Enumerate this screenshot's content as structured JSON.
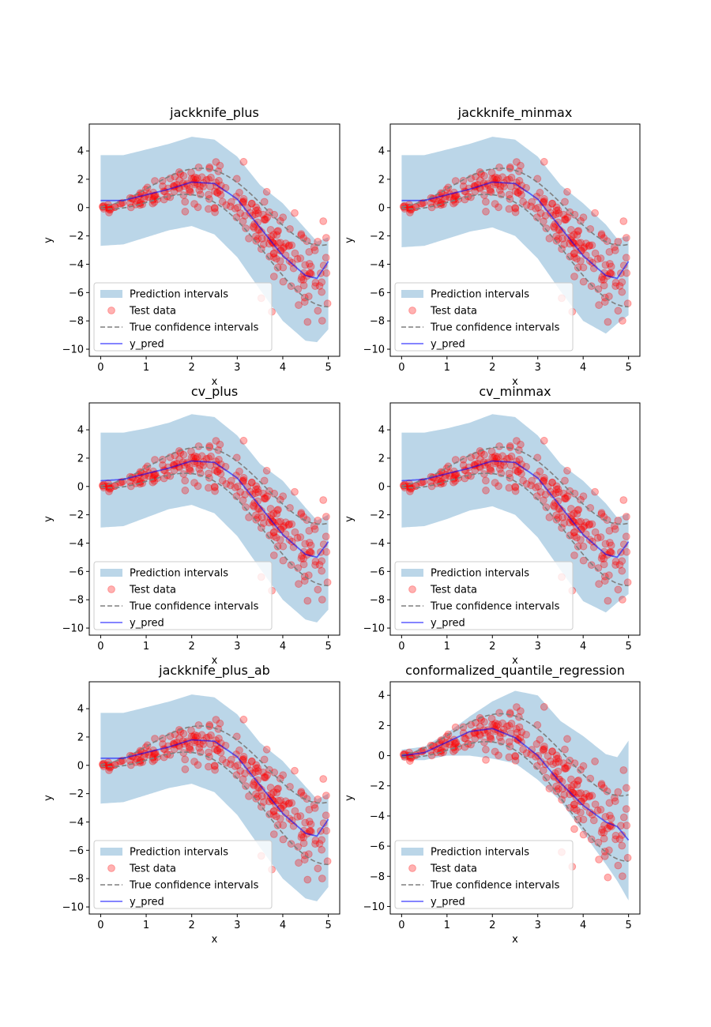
{
  "chart_data": [
    {
      "type": "scatter",
      "title": "jackknife_plus",
      "xlabel": "x",
      "ylabel": "y",
      "xlim": [
        -0.25,
        5.25
      ],
      "ylim": [
        -10.5,
        5.9
      ],
      "xticks": [
        0,
        1,
        2,
        3,
        4,
        5
      ],
      "yticks": [
        -10,
        -8,
        -6,
        -4,
        -2,
        0,
        2,
        4
      ],
      "legend_position": "lower-left",
      "legend": [
        "Prediction intervals",
        "Test data",
        "True confidence intervals",
        "y_pred"
      ],
      "interval_x": [
        0,
        0.5,
        1,
        1.5,
        2,
        2.5,
        3,
        3.5,
        4,
        4.5,
        4.75,
        5
      ],
      "interval_lower": [
        -2.7,
        -2.6,
        -2.1,
        -1.6,
        -1.3,
        -1.9,
        -3.5,
        -5.8,
        -8.0,
        -9.4,
        -9.5,
        -8.6
      ],
      "interval_upper": [
        3.7,
        3.7,
        4.1,
        4.5,
        5.0,
        4.8,
        3.6,
        1.6,
        0.3,
        -1.5,
        -2.4,
        -2.1
      ],
      "y_pred_x": [
        0,
        0.5,
        1,
        1.5,
        2,
        2.5,
        3,
        3.5,
        4,
        4.5,
        4.75,
        5
      ],
      "y_pred": [
        0.5,
        0.5,
        0.9,
        1.3,
        1.8,
        1.7,
        0.6,
        -1.4,
        -3.4,
        -4.8,
        -5.0,
        -3.8
      ]
    },
    {
      "type": "scatter",
      "title": "jackknife_minmax",
      "xlabel": "x",
      "ylabel": "y",
      "xlim": [
        -0.25,
        5.25
      ],
      "ylim": [
        -10.5,
        5.9
      ],
      "xticks": [
        0,
        1,
        2,
        3,
        4,
        5
      ],
      "yticks": [
        -10,
        -8,
        -6,
        -4,
        -2,
        0,
        2,
        4
      ],
      "legend_position": "lower-left",
      "legend": [
        "Prediction intervals",
        "Test data",
        "True confidence intervals",
        "y_pred"
      ],
      "interval_x": [
        0,
        0.5,
        1,
        1.5,
        2,
        2.5,
        3,
        3.5,
        4,
        4.5,
        4.75,
        5
      ],
      "interval_lower": [
        -2.8,
        -2.7,
        -2.2,
        -1.7,
        -1.4,
        -2.0,
        -3.6,
        -5.9,
        -8.0,
        -8.9,
        -8.2,
        -7.6
      ],
      "interval_upper": [
        3.7,
        3.7,
        4.1,
        4.5,
        5.0,
        4.8,
        3.6,
        1.6,
        0.3,
        -1.2,
        -2.2,
        -2.0
      ],
      "y_pred_x": [
        0,
        0.5,
        1,
        1.5,
        2,
        2.5,
        3,
        3.5,
        4,
        4.5,
        4.75,
        5
      ],
      "y_pred": [
        0.5,
        0.5,
        0.9,
        1.3,
        1.8,
        1.7,
        0.6,
        -1.4,
        -3.4,
        -4.8,
        -5.0,
        -3.8
      ]
    },
    {
      "type": "scatter",
      "title": "cv_plus",
      "xlabel": "x",
      "ylabel": "y",
      "xlim": [
        -0.25,
        5.25
      ],
      "ylim": [
        -10.5,
        5.9
      ],
      "xticks": [
        0,
        1,
        2,
        3,
        4,
        5
      ],
      "yticks": [
        -10,
        -8,
        -6,
        -4,
        -2,
        0,
        2,
        4
      ],
      "legend_position": "lower-left",
      "legend": [
        "Prediction intervals",
        "Test data",
        "True confidence intervals",
        "y_pred"
      ],
      "interval_x": [
        0,
        0.5,
        1,
        1.5,
        2,
        2.5,
        3,
        3.5,
        4,
        4.5,
        4.75,
        5
      ],
      "interval_lower": [
        -2.9,
        -2.8,
        -2.2,
        -1.6,
        -1.3,
        -1.9,
        -3.5,
        -5.8,
        -8.0,
        -9.4,
        -9.6,
        -8.7
      ],
      "interval_upper": [
        3.8,
        3.8,
        4.1,
        4.5,
        5.1,
        4.9,
        3.6,
        1.6,
        0.4,
        -1.5,
        -2.4,
        -2.0
      ],
      "y_pred_x": [
        0,
        0.5,
        1,
        1.5,
        2,
        2.5,
        3,
        3.5,
        4,
        4.5,
        4.75,
        5
      ],
      "y_pred": [
        0.4,
        0.5,
        0.9,
        1.3,
        1.8,
        1.7,
        0.6,
        -1.4,
        -3.4,
        -4.8,
        -5.0,
        -3.9
      ]
    },
    {
      "type": "scatter",
      "title": "cv_minmax",
      "xlabel": "x",
      "ylabel": "y",
      "xlim": [
        -0.25,
        5.25
      ],
      "ylim": [
        -10.5,
        5.9
      ],
      "xticks": [
        0,
        1,
        2,
        3,
        4,
        5
      ],
      "yticks": [
        -10,
        -8,
        -6,
        -4,
        -2,
        0,
        2,
        4
      ],
      "legend_position": "lower-left",
      "legend": [
        "Prediction intervals",
        "Test data",
        "True confidence intervals",
        "y_pred"
      ],
      "interval_x": [
        0,
        0.5,
        1,
        1.5,
        2,
        2.5,
        3,
        3.5,
        4,
        4.5,
        4.75,
        5
      ],
      "interval_lower": [
        -2.9,
        -2.8,
        -2.3,
        -1.7,
        -1.4,
        -2.0,
        -3.6,
        -5.9,
        -8.1,
        -8.9,
        -8.2,
        -7.6
      ],
      "interval_upper": [
        3.8,
        3.8,
        4.1,
        4.5,
        5.1,
        4.9,
        3.6,
        1.6,
        0.4,
        -1.2,
        -2.2,
        -1.9
      ],
      "y_pred_x": [
        0,
        0.5,
        1,
        1.5,
        2,
        2.5,
        3,
        3.5,
        4,
        4.5,
        4.75,
        5
      ],
      "y_pred": [
        0.4,
        0.5,
        0.9,
        1.3,
        1.8,
        1.7,
        0.6,
        -1.4,
        -3.4,
        -4.8,
        -5.0,
        -3.9
      ]
    },
    {
      "type": "scatter",
      "title": "jackknife_plus_ab",
      "xlabel": "x",
      "ylabel": "y",
      "xlim": [
        -0.25,
        5.25
      ],
      "ylim": [
        -10.5,
        5.9
      ],
      "xticks": [
        0,
        1,
        2,
        3,
        4,
        5
      ],
      "yticks": [
        -10,
        -8,
        -6,
        -4,
        -2,
        0,
        2,
        4
      ],
      "legend_position": "lower-left",
      "legend": [
        "Prediction intervals",
        "Test data",
        "True confidence intervals",
        "y_pred"
      ],
      "interval_x": [
        0,
        0.5,
        1,
        1.5,
        2,
        2.5,
        3,
        3.5,
        4,
        4.5,
        4.75,
        5
      ],
      "interval_lower": [
        -2.7,
        -2.6,
        -2.1,
        -1.6,
        -1.3,
        -1.9,
        -3.5,
        -5.8,
        -8.0,
        -9.4,
        -9.6,
        -8.6
      ],
      "interval_upper": [
        3.7,
        3.7,
        4.1,
        4.5,
        5.0,
        4.8,
        3.6,
        1.6,
        0.3,
        -1.5,
        -2.4,
        -2.0
      ],
      "y_pred_x": [
        0,
        0.5,
        1,
        1.5,
        2,
        2.5,
        3,
        3.5,
        4,
        4.5,
        4.75,
        5
      ],
      "y_pred": [
        0.5,
        0.5,
        0.9,
        1.3,
        1.8,
        1.7,
        0.6,
        -1.4,
        -3.4,
        -4.8,
        -5.0,
        -3.8
      ]
    },
    {
      "type": "scatter",
      "title": "conformalized_quantile_regression",
      "xlabel": "x",
      "ylabel": "y",
      "xlim": [
        -0.25,
        5.25
      ],
      "ylim": [
        -10.5,
        4.9
      ],
      "xticks": [
        0,
        1,
        2,
        3,
        4,
        5
      ],
      "yticks": [
        -10,
        -8,
        -6,
        -4,
        -2,
        0,
        2,
        4
      ],
      "legend_position": "lower-left",
      "legend": [
        "Prediction intervals",
        "Test data",
        "True confidence intervals",
        "y_pred"
      ],
      "interval_x": [
        0,
        0.5,
        1,
        1.5,
        2,
        2.5,
        3,
        3.5,
        4,
        4.5,
        4.75,
        5
      ],
      "interval_lower": [
        -0.3,
        -0.3,
        0.0,
        0.0,
        -0.2,
        -0.5,
        -1.6,
        -3.0,
        -5.1,
        -7.2,
        -8.3,
        -9.6
      ],
      "interval_upper": [
        0.4,
        0.6,
        1.5,
        2.6,
        3.6,
        4.3,
        4.0,
        2.3,
        1.3,
        0.1,
        -0.1,
        1.0
      ],
      "y_pred_x": [
        0,
        0.5,
        1,
        1.5,
        2,
        2.5,
        3,
        3.5,
        4,
        4.5,
        4.75,
        5
      ],
      "y_pred": [
        0.0,
        0.2,
        0.9,
        1.6,
        1.8,
        1.2,
        0.0,
        -1.8,
        -3.3,
        -4.4,
        -4.7,
        -5.6
      ]
    }
  ]
}
